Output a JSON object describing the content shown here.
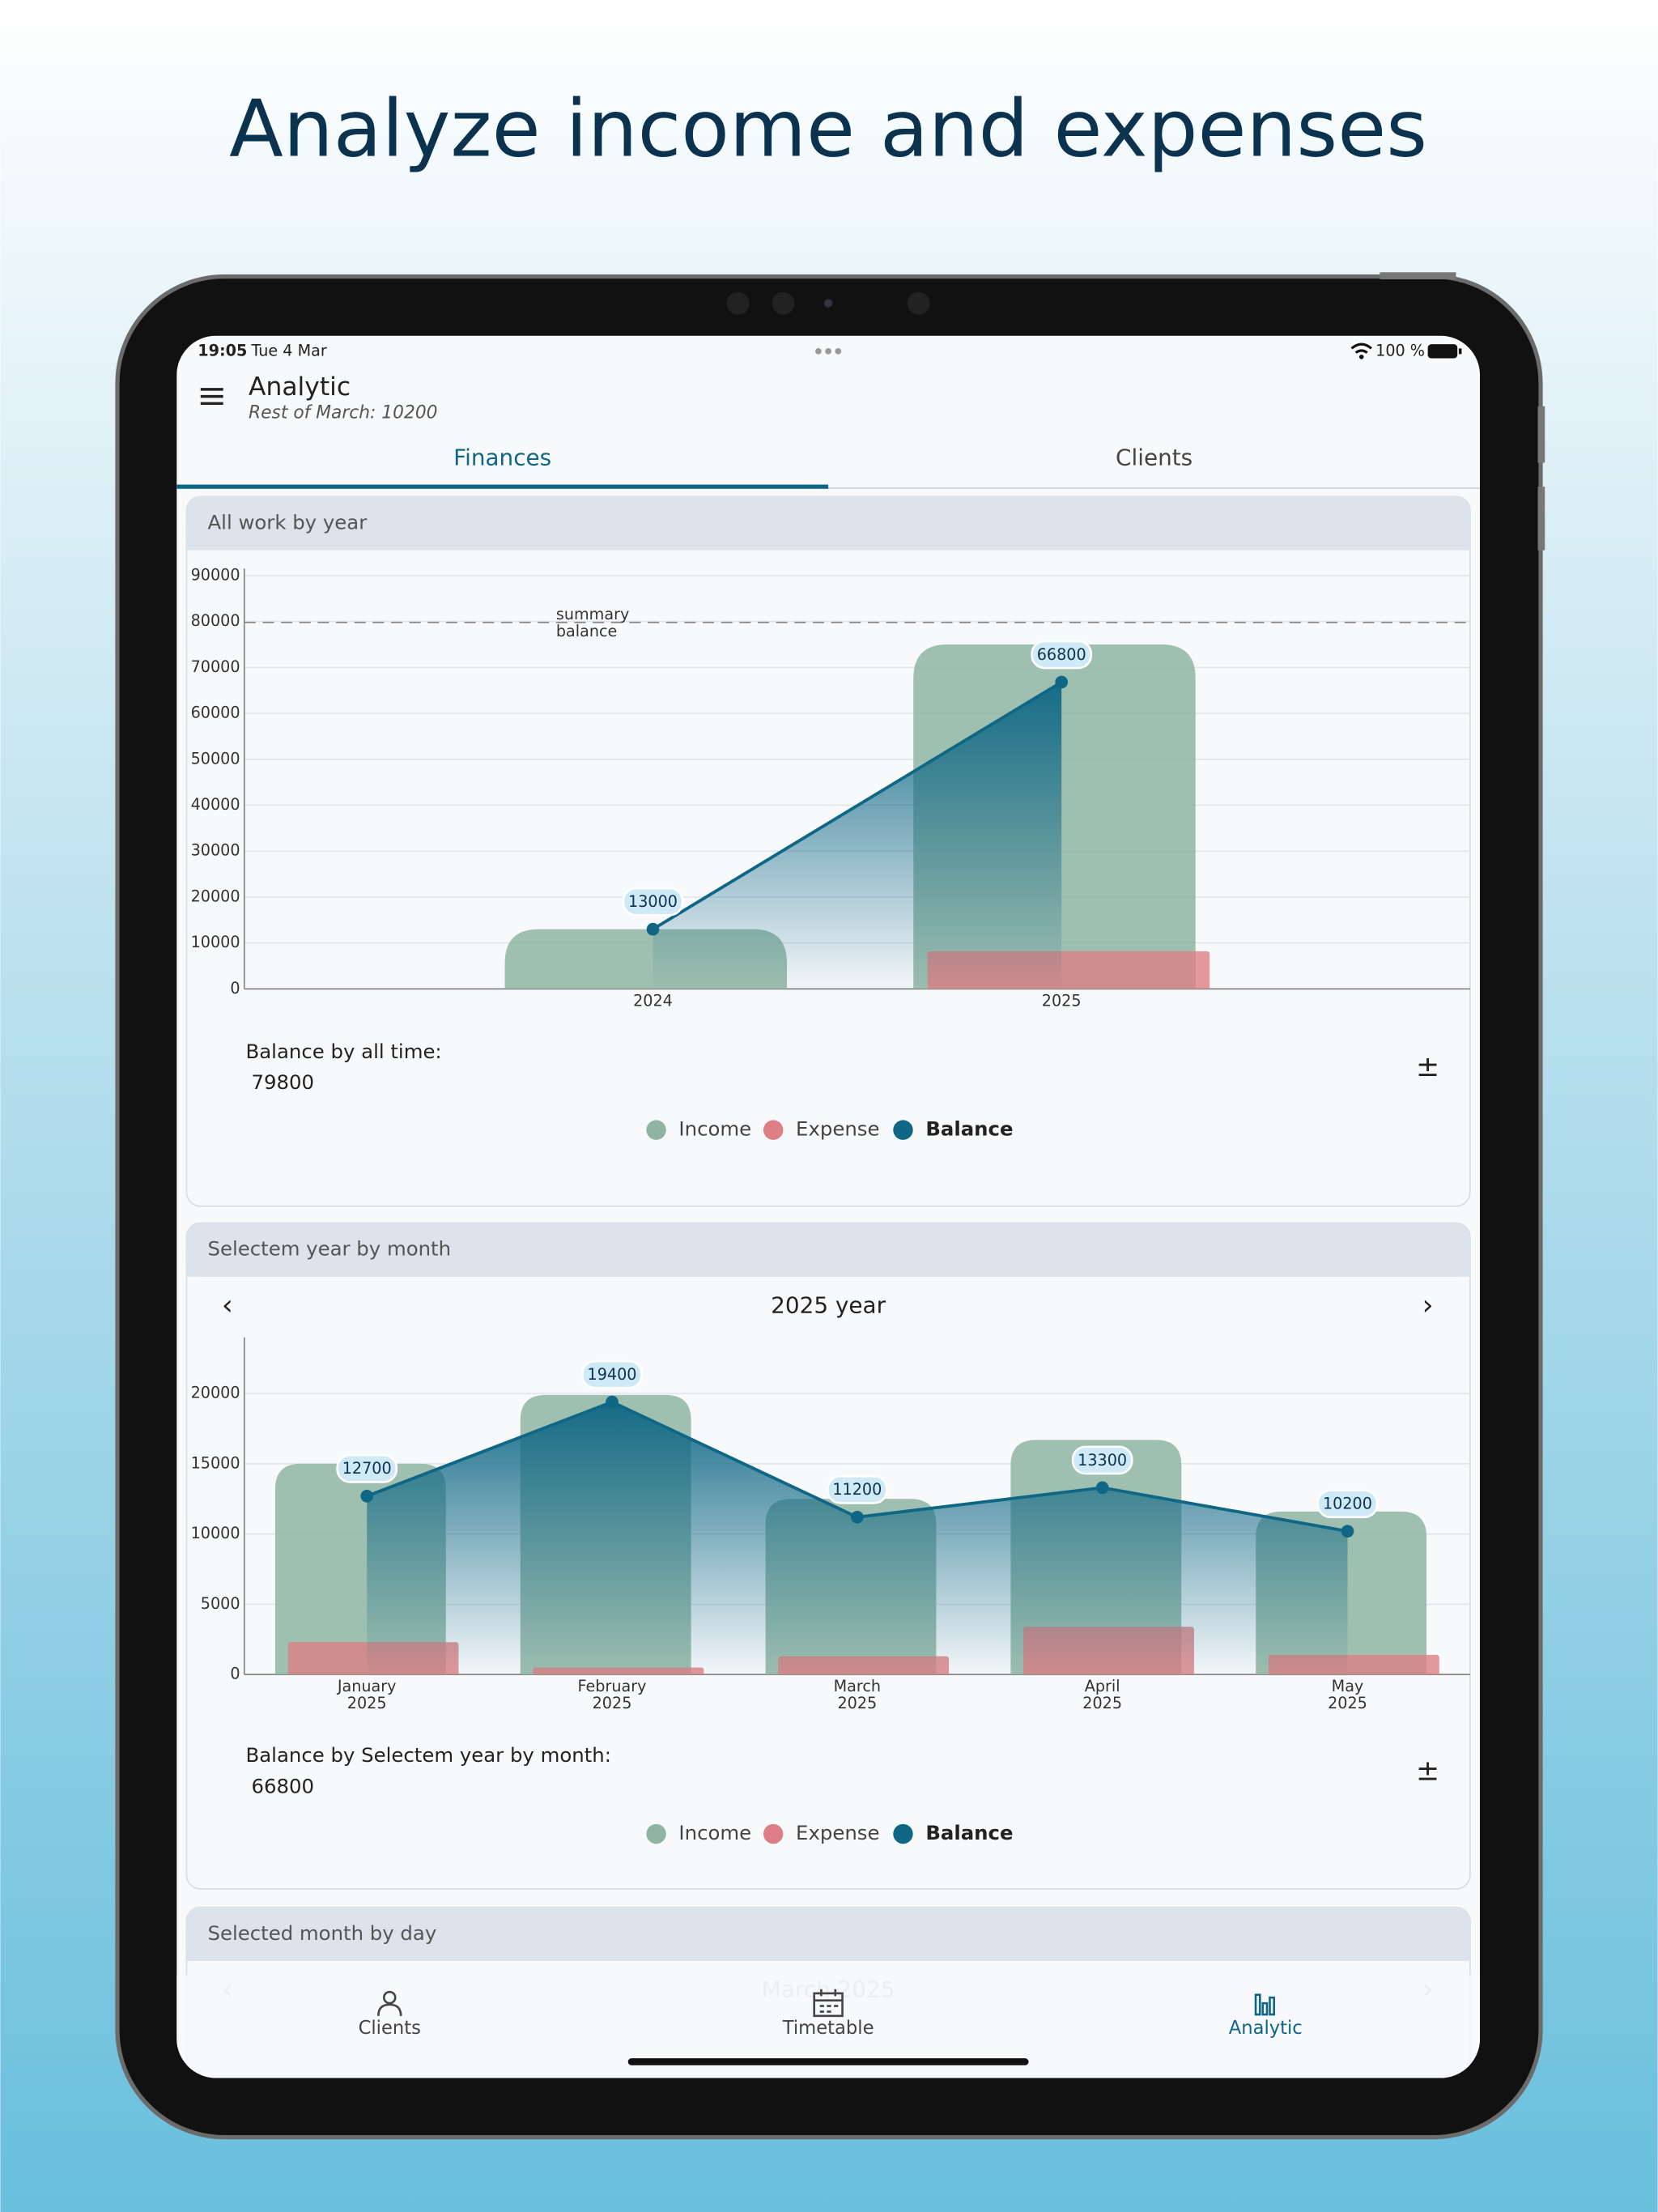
{
  "headline": "Analyze income and expenses",
  "status_bar": {
    "time": "19:05",
    "date": "Tue 4 Mar",
    "battery": "100 %"
  },
  "app_bar": {
    "title": "Analytic",
    "subtitle": "Rest of March: 10200"
  },
  "tabs": [
    "Finances",
    "Clients"
  ],
  "chart_data": [
    {
      "type": "bar",
      "title": "All work by year",
      "categories": [
        "2024",
        "2025"
      ],
      "series": [
        {
          "name": "Income",
          "color": "#8fb5a2",
          "values": [
            13000,
            75000
          ]
        },
        {
          "name": "Expense",
          "color": "#dd7f84",
          "values": [
            0,
            8200
          ]
        },
        {
          "name": "Balance",
          "color": "#0f6785",
          "type": "line",
          "values": [
            13000,
            66800
          ]
        }
      ],
      "ylim": [
        0,
        90000
      ],
      "yticks": [
        0,
        10000,
        20000,
        30000,
        40000,
        50000,
        60000,
        70000,
        80000,
        90000
      ],
      "grid": true,
      "reference_line": {
        "value": 79800,
        "label": "summary\nbalance"
      },
      "summary_label": "Balance by all time:",
      "summary_value": 79800
    },
    {
      "type": "bar",
      "title": "Selectem year by month",
      "period": "2025 year",
      "categories": [
        "January\n2025",
        "February\n2025",
        "March\n2025",
        "April\n2025",
        "May\n2025"
      ],
      "series": [
        {
          "name": "Income",
          "color": "#8fb5a2",
          "values": [
            15000,
            19900,
            12500,
            16700,
            11600
          ]
        },
        {
          "name": "Expense",
          "color": "#dd7f84",
          "values": [
            2300,
            500,
            1300,
            3400,
            1400
          ]
        },
        {
          "name": "Balance",
          "color": "#0f6785",
          "type": "line",
          "values": [
            12700,
            19400,
            11200,
            13300,
            10200
          ]
        }
      ],
      "ylim": [
        0,
        24000
      ],
      "yticks": [
        0,
        5000,
        10000,
        15000,
        20000
      ],
      "grid": true,
      "summary_label": "Balance by Selectem year by month:",
      "summary_value": 66800
    }
  ],
  "day_section": {
    "title": "Selected month by day",
    "period": "March 2025"
  },
  "bottom_nav": [
    "Clients",
    "Timetable",
    "Analytic"
  ]
}
